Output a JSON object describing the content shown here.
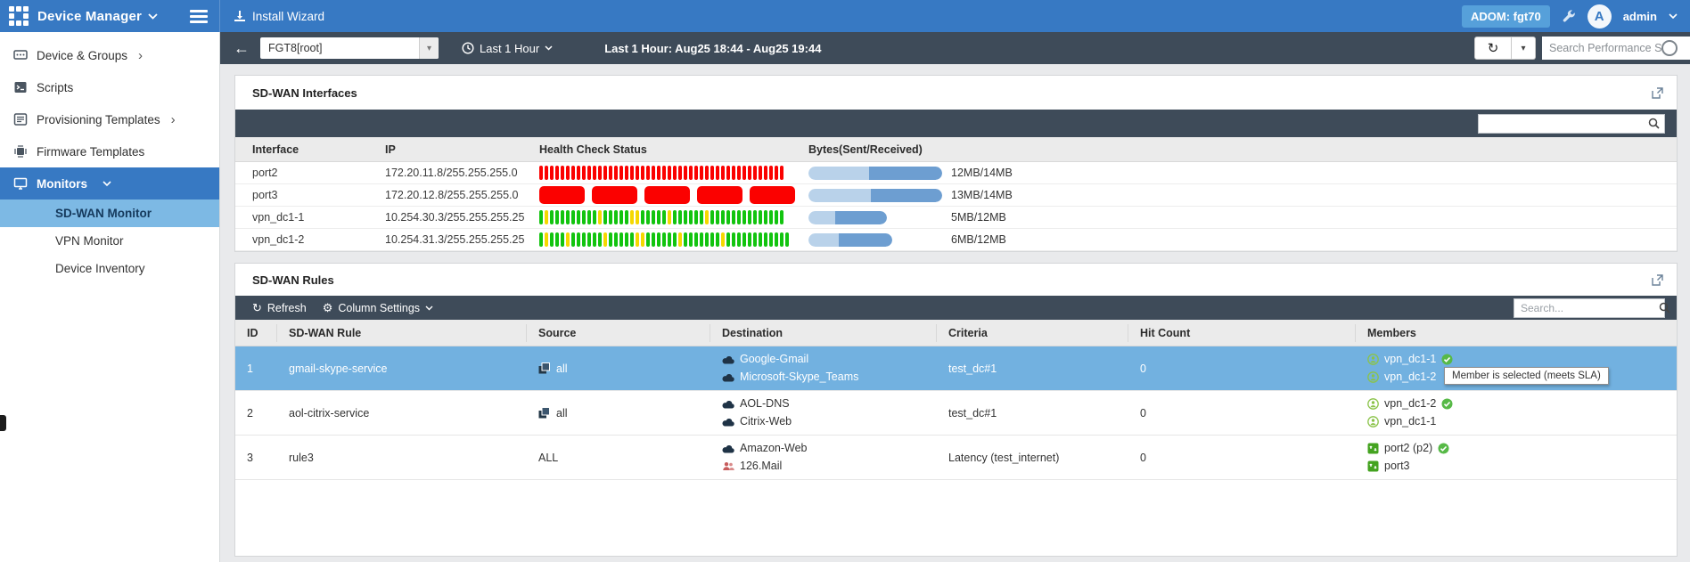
{
  "topbar": {
    "app_title": "Device Manager",
    "install_wizard": "Install Wizard",
    "adom_badge": "ADOM: fgt70",
    "avatar_letter": "A",
    "username": "admin"
  },
  "sidebar": {
    "items": [
      {
        "label": "Device & Groups",
        "chevron": "›"
      },
      {
        "label": "Scripts",
        "chevron": ""
      },
      {
        "label": "Provisioning Templates",
        "chevron": "›"
      },
      {
        "label": "Firmware Templates",
        "chevron": ""
      },
      {
        "label": "Monitors",
        "chevron": ""
      }
    ],
    "monitors_children": [
      {
        "label": "SD-WAN Monitor"
      },
      {
        "label": "VPN Monitor"
      },
      {
        "label": "Device Inventory"
      }
    ]
  },
  "toolbar": {
    "back": "←",
    "device_selector": "FGT8[root]",
    "time_dropdown": "Last 1 Hour",
    "time_range_label": "Last 1 Hour: Aug25 18:44 - Aug25 19:44",
    "search_placeholder": "Search Performance SLA",
    "refresh_glyph": "↻",
    "caret_glyph": "▾"
  },
  "interfaces_panel": {
    "title": "SD-WAN Interfaces",
    "columns": [
      "Interface",
      "IP",
      "Health Check Status",
      "Bytes(Sent/Received)"
    ],
    "rows": [
      {
        "interface": "port2",
        "ip": "172.20.11.8/255.255.255.0",
        "health": "rrrrrrrrrrrrrrrrrrrrrrrrrrrrrrrrrrrrrrrrrrrrrr",
        "bytes_label": "12MB/14MB",
        "sent_w": 68,
        "recv_w": 82
      },
      {
        "interface": "port3",
        "ip": "172.20.12.8/255.255.255.0",
        "health": "RRRRR",
        "bytes_label": "13MB/14MB",
        "sent_w": 70,
        "recv_w": 80
      },
      {
        "interface": "vpn_dc1-1",
        "ip": "10.254.30.3/255.255.255.25",
        "health": "gygggggggggygggggyygggggyggggggygggggggggggggg",
        "bytes_label": "5MB/12MB",
        "sent_w": 30,
        "recv_w": 58
      },
      {
        "interface": "vpn_dc1-2",
        "ip": "10.254.31.3/255.255.255.25",
        "health": "gygggyggggggygggggyyggggggygggggggygggggggggggg",
        "bytes_label": "6MB/12MB",
        "sent_w": 34,
        "recv_w": 60
      }
    ]
  },
  "rules_panel": {
    "title": "SD-WAN Rules",
    "toolbar": {
      "refresh": "Refresh",
      "column_settings": "Column Settings",
      "search_placeholder": "Search...",
      "refresh_glyph": "↻",
      "gear_glyph": "⚙"
    },
    "columns": [
      "ID",
      "SD-WAN Rule",
      "Source",
      "Destination",
      "Criteria",
      "Hit Count",
      "Members"
    ],
    "rows": [
      {
        "id": "1",
        "rule": "gmail-skype-service",
        "source_label": "all",
        "dest1": "Google-Gmail",
        "dest2": "Microsoft-Skype_Teams",
        "criteria": "test_dc#1",
        "hit_count": "0",
        "member1": "vpn_dc1-1",
        "member2": "vpn_dc1-2"
      },
      {
        "id": "2",
        "rule": "aol-citrix-service",
        "source_label": "all",
        "dest1": "AOL-DNS",
        "dest2": "Citrix-Web",
        "criteria": "test_dc#1",
        "hit_count": "0",
        "member1": "vpn_dc1-2",
        "member2": "vpn_dc1-1"
      },
      {
        "id": "3",
        "rule": "rule3",
        "source_label": "ALL",
        "dest1": "Amazon-Web",
        "dest2": "126.Mail",
        "criteria": "Latency (test_internet)",
        "hit_count": "0",
        "member1": "port2 (p2)",
        "member2": "port3"
      }
    ],
    "tooltip": "Member is selected (meets SLA)"
  },
  "colors": {
    "topbar_blue": "#3779c3",
    "dark_toolbar": "#3e4b59",
    "selected_row": "#72b1e0",
    "health_red": "#fb0100",
    "health_green": "#12c40f",
    "health_yellow": "#f5d800",
    "bytes_sent": "#b9d2ea",
    "bytes_received": "#6d9ed1",
    "member_ok_green": "#57b947"
  }
}
